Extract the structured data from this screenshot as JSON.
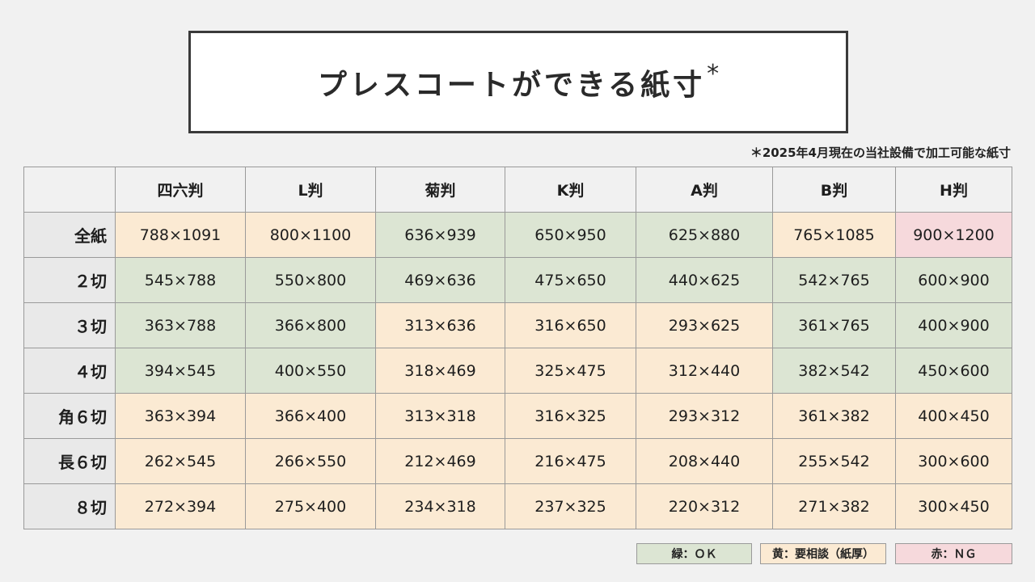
{
  "title": "プレスコートができる紙寸",
  "title_mark": "*",
  "note": "＊2025年4月現在の当社設備で加工可能な紙寸",
  "columns": [
    "四六判",
    "L判",
    "菊判",
    "K判",
    "A判",
    "B判",
    "H判"
  ],
  "rows": [
    {
      "label": "全紙",
      "cells": [
        {
          "v": "788×1091",
          "s": "warn"
        },
        {
          "v": "800×1100",
          "s": "warn"
        },
        {
          "v": "636×939",
          "s": "ok"
        },
        {
          "v": "650×950",
          "s": "ok"
        },
        {
          "v": "625×880",
          "s": "ok"
        },
        {
          "v": "765×1085",
          "s": "warn"
        },
        {
          "v": "900×1200",
          "s": "ng"
        }
      ]
    },
    {
      "label": "２切",
      "cells": [
        {
          "v": "545×788",
          "s": "ok"
        },
        {
          "v": "550×800",
          "s": "ok"
        },
        {
          "v": "469×636",
          "s": "ok"
        },
        {
          "v": "475×650",
          "s": "ok"
        },
        {
          "v": "440×625",
          "s": "ok"
        },
        {
          "v": "542×765",
          "s": "ok"
        },
        {
          "v": "600×900",
          "s": "ok"
        }
      ]
    },
    {
      "label": "３切",
      "cells": [
        {
          "v": "363×788",
          "s": "ok"
        },
        {
          "v": "366×800",
          "s": "ok"
        },
        {
          "v": "313×636",
          "s": "warn"
        },
        {
          "v": "316×650",
          "s": "warn"
        },
        {
          "v": "293×625",
          "s": "warn"
        },
        {
          "v": "361×765",
          "s": "ok"
        },
        {
          "v": "400×900",
          "s": "ok"
        }
      ]
    },
    {
      "label": "４切",
      "cells": [
        {
          "v": "394×545",
          "s": "ok"
        },
        {
          "v": "400×550",
          "s": "ok"
        },
        {
          "v": "318×469",
          "s": "warn"
        },
        {
          "v": "325×475",
          "s": "warn"
        },
        {
          "v": "312×440",
          "s": "warn"
        },
        {
          "v": "382×542",
          "s": "ok"
        },
        {
          "v": "450×600",
          "s": "ok"
        }
      ]
    },
    {
      "label": "角６切",
      "cells": [
        {
          "v": "363×394",
          "s": "warn"
        },
        {
          "v": "366×400",
          "s": "warn"
        },
        {
          "v": "313×318",
          "s": "warn"
        },
        {
          "v": "316×325",
          "s": "warn"
        },
        {
          "v": "293×312",
          "s": "warn"
        },
        {
          "v": "361×382",
          "s": "warn"
        },
        {
          "v": "400×450",
          "s": "warn"
        }
      ]
    },
    {
      "label": "長６切",
      "cells": [
        {
          "v": "262×545",
          "s": "warn"
        },
        {
          "v": "266×550",
          "s": "warn"
        },
        {
          "v": "212×469",
          "s": "warn"
        },
        {
          "v": "216×475",
          "s": "warn"
        },
        {
          "v": "208×440",
          "s": "warn"
        },
        {
          "v": "255×542",
          "s": "warn"
        },
        {
          "v": "300×600",
          "s": "warn"
        }
      ]
    },
    {
      "label": "８切",
      "cells": [
        {
          "v": "272×394",
          "s": "warn"
        },
        {
          "v": "275×400",
          "s": "warn"
        },
        {
          "v": "234×318",
          "s": "warn"
        },
        {
          "v": "237×325",
          "s": "warn"
        },
        {
          "v": "220×312",
          "s": "warn"
        },
        {
          "v": "271×382",
          "s": "warn"
        },
        {
          "v": "300×450",
          "s": "warn"
        }
      ]
    }
  ],
  "legend": {
    "ok": "緑：ＯＫ",
    "warn": "黄：要相談（紙厚）",
    "ng": "赤：ＮＧ"
  },
  "colors": {
    "ok": "#dce5d3",
    "warn": "#fbead3",
    "ng": "#f6d9dc"
  }
}
